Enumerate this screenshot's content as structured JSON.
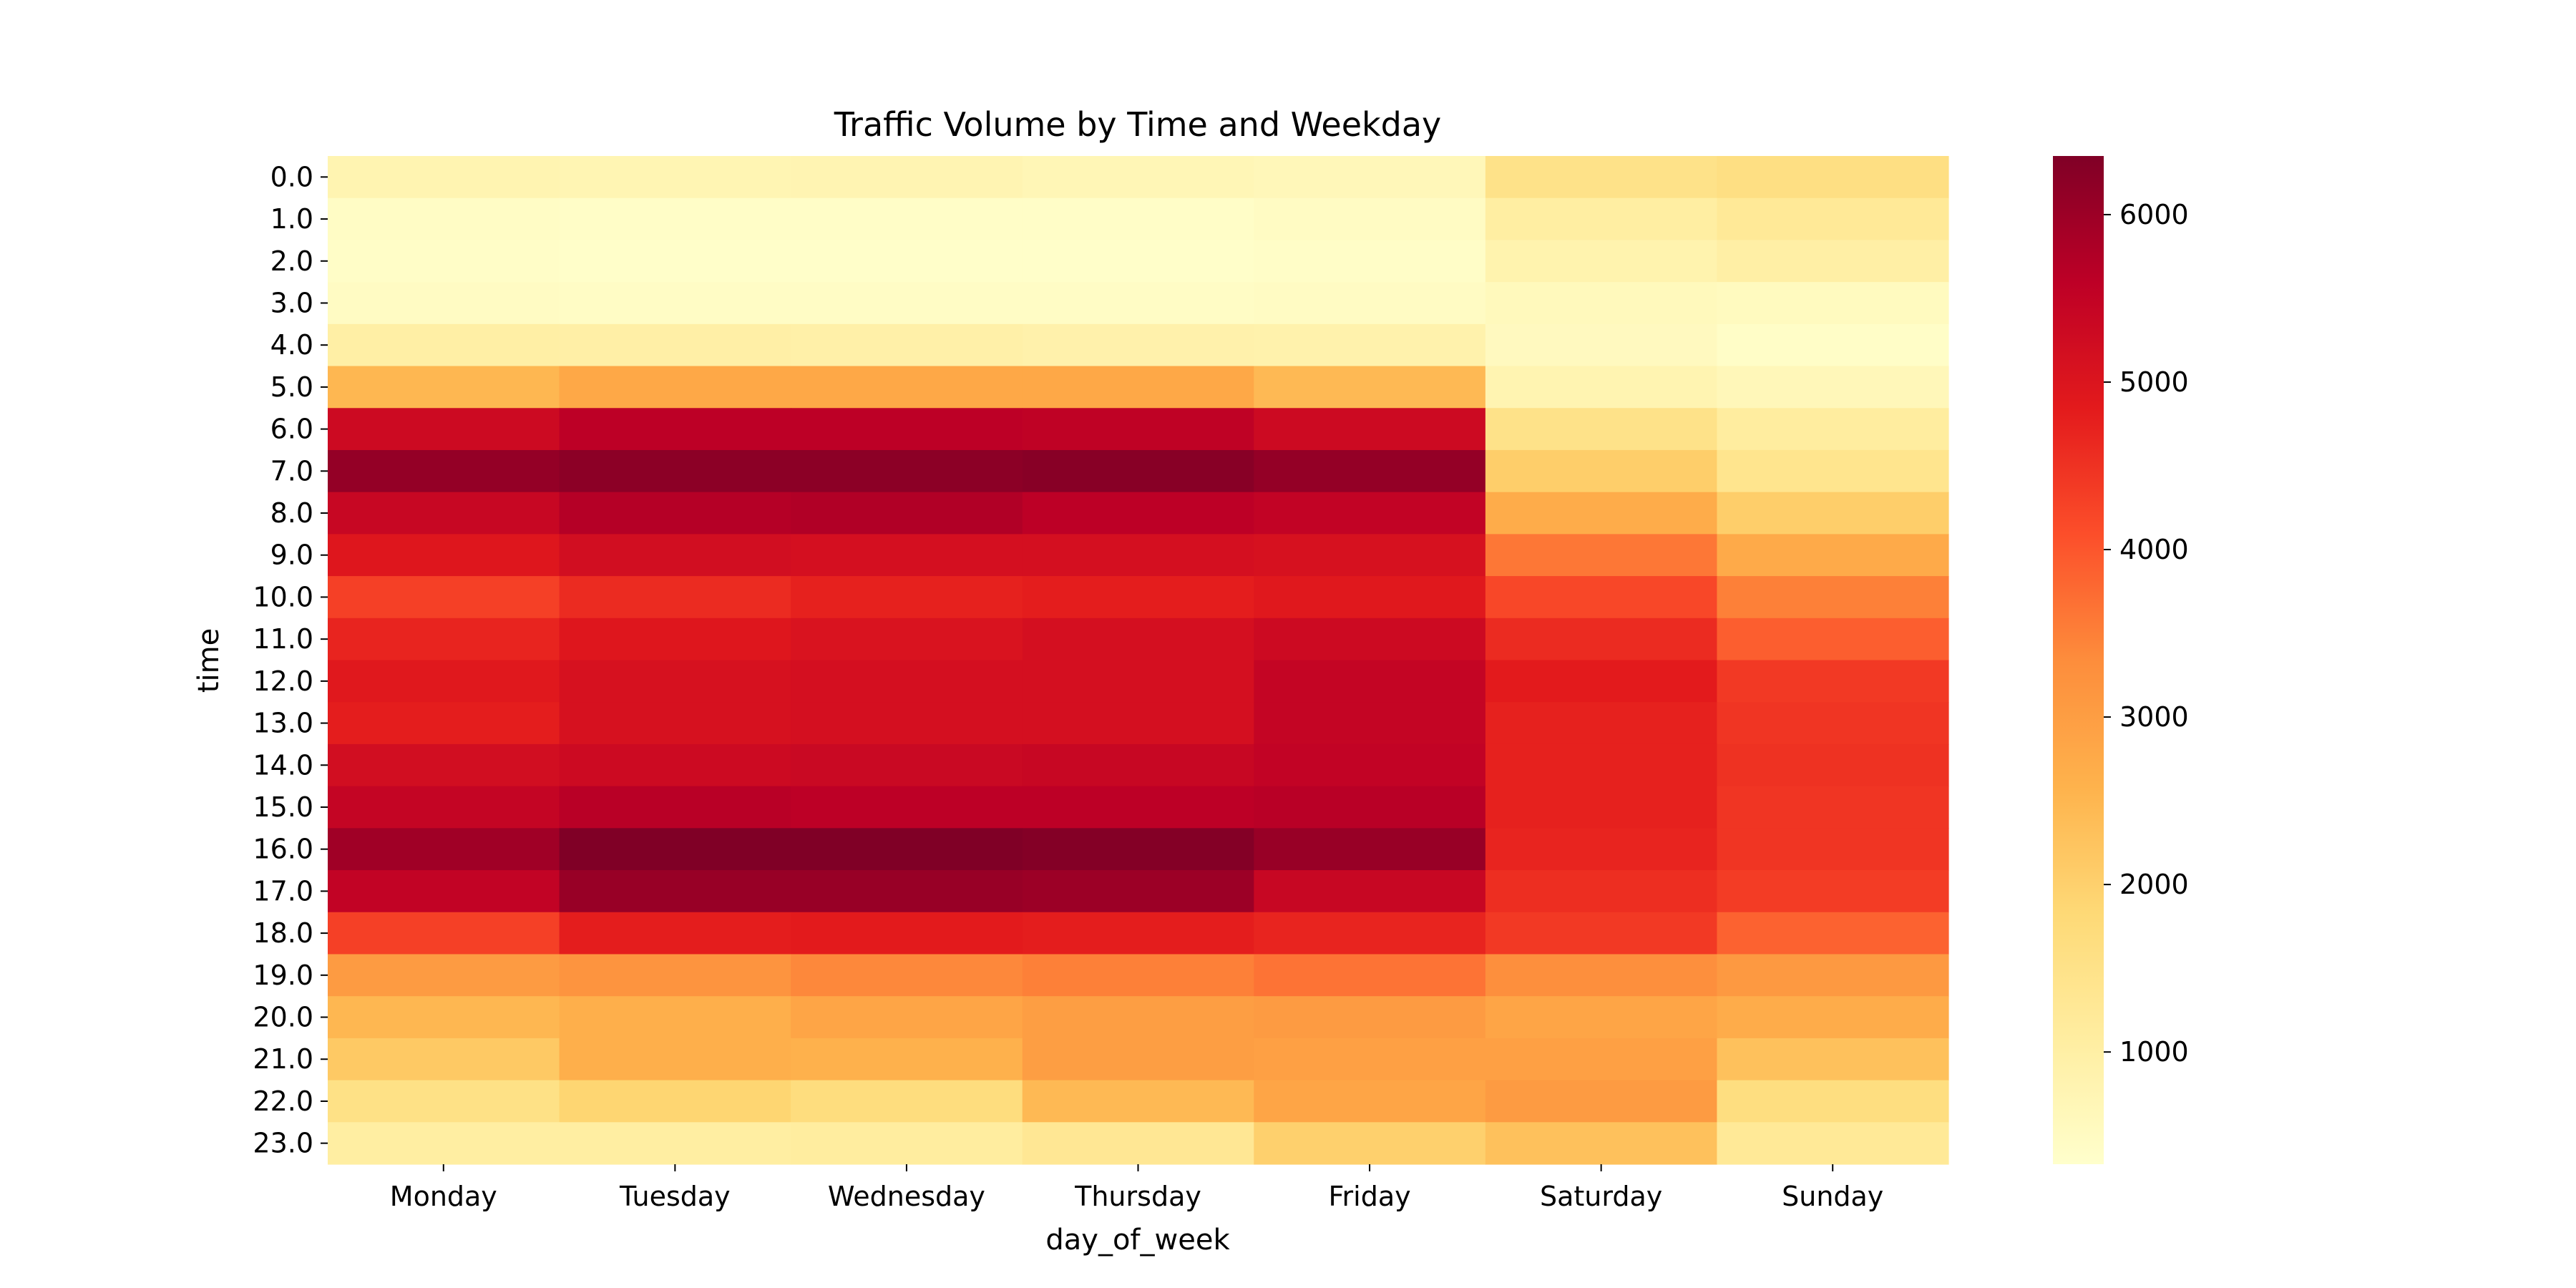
{
  "chart_data": {
    "type": "heatmap",
    "title": "Traffic Volume by Time and Weekday",
    "xlabel": "day_of_week",
    "ylabel": "time",
    "x_categories": [
      "Monday",
      "Tuesday",
      "Wednesday",
      "Thursday",
      "Friday",
      "Saturday",
      "Sunday"
    ],
    "y_categories": [
      "0.0",
      "1.0",
      "2.0",
      "3.0",
      "4.0",
      "5.0",
      "6.0",
      "7.0",
      "8.0",
      "9.0",
      "10.0",
      "11.0",
      "12.0",
      "13.0",
      "14.0",
      "15.0",
      "16.0",
      "17.0",
      "18.0",
      "19.0",
      "20.0",
      "21.0",
      "22.0",
      "23.0"
    ],
    "values": [
      [
        800,
        750,
        780,
        700,
        650,
        1500,
        1600
      ],
      [
        450,
        420,
        420,
        420,
        480,
        1050,
        1250
      ],
      [
        420,
        380,
        380,
        380,
        420,
        850,
        1000
      ],
      [
        480,
        450,
        450,
        450,
        480,
        600,
        550
      ],
      [
        1000,
        980,
        950,
        900,
        870,
        560,
        420
      ],
      [
        2500,
        2800,
        2800,
        2800,
        2450,
        800,
        650
      ],
      [
        5300,
        5600,
        5600,
        5550,
        5300,
        1500,
        1100
      ],
      [
        6100,
        6200,
        6200,
        6250,
        6100,
        2050,
        1400
      ],
      [
        5400,
        5700,
        5750,
        5600,
        5500,
        2700,
        2050
      ],
      [
        4950,
        5200,
        5150,
        5150,
        5100,
        3600,
        2750
      ],
      [
        4300,
        4600,
        4750,
        4800,
        4900,
        4200,
        3500
      ],
      [
        4700,
        4950,
        5050,
        5150,
        5300,
        4600,
        3900
      ],
      [
        4900,
        5100,
        5150,
        5150,
        5450,
        4850,
        4400
      ],
      [
        4800,
        5100,
        5150,
        5150,
        5450,
        4750,
        4450
      ],
      [
        5200,
        5300,
        5350,
        5400,
        5500,
        4750,
        4500
      ],
      [
        5450,
        5650,
        5600,
        5600,
        5650,
        4750,
        4450
      ],
      [
        5950,
        6350,
        6350,
        6300,
        6050,
        4700,
        4450
      ],
      [
        5500,
        6050,
        6050,
        6000,
        5400,
        4550,
        4350
      ],
      [
        4300,
        4800,
        4850,
        4800,
        4700,
        4400,
        3850
      ],
      [
        3050,
        3200,
        3400,
        3500,
        3650,
        3300,
        3100
      ],
      [
        2500,
        2650,
        2850,
        3000,
        3050,
        2850,
        2700
      ],
      [
        2150,
        2650,
        2600,
        3000,
        2950,
        2950,
        2300
      ],
      [
        1550,
        1900,
        1700,
        2450,
        2850,
        3050,
        1650
      ],
      [
        1050,
        1050,
        1100,
        1300,
        2000,
        2300,
        1250
      ]
    ],
    "colorbar": {
      "min": 330,
      "max": 6350,
      "ticks": [
        1000,
        2000,
        3000,
        4000,
        5000,
        6000
      ],
      "colormap": "YlOrRd"
    },
    "grid": false,
    "legend": "colorbar-right"
  }
}
